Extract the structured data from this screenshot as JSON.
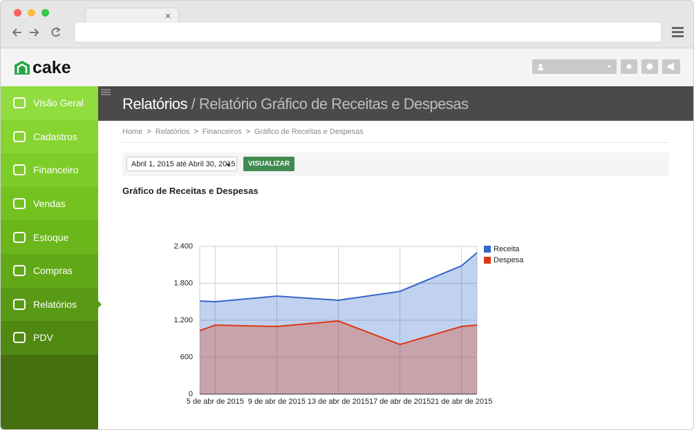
{
  "app": {
    "logo": "cake"
  },
  "sidebar": {
    "items": [
      "Visão Geral",
      "Cadastros",
      "Financeiro",
      "Vendas",
      "Estoque",
      "Compras",
      "Relatórios",
      "PDV"
    ]
  },
  "header": {
    "section": "Relatórios",
    "separator": "/",
    "page": "Relatório Gráfico de Receitas e Despesas"
  },
  "breadcrumb": {
    "items": [
      "Home",
      "Relatórios",
      "Financeiros",
      "Gráfico de Receitas e Despesas"
    ],
    "separator": ">"
  },
  "filter": {
    "date_range": "Abril 1, 2015 até Abril 30, 2015",
    "button": "VISUALIZAR"
  },
  "chart_data": {
    "type": "area",
    "title": "Gráfico de Receitas e Despesas",
    "x": [
      "2015-04-04",
      "2015-04-05",
      "2015-04-09",
      "2015-04-13",
      "2015-04-17",
      "2015-04-21",
      "2015-04-22"
    ],
    "series": [
      {
        "name": "Receita",
        "color": "#3366cc",
        "values": [
          1513,
          1502,
          1592,
          1525,
          1670,
          2085,
          2298
        ]
      },
      {
        "name": "Despesa",
        "color": "#dc3912",
        "values": [
          1031,
          1121,
          1099,
          1188,
          807,
          1099,
          1121
        ]
      }
    ],
    "xlim": [
      "2015-04-04",
      "2015-04-22"
    ],
    "xticks": [
      {
        "value": "2015-04-05",
        "label": "5 de abr de 2015"
      },
      {
        "value": "2015-04-09",
        "label": "9 de abr de 2015"
      },
      {
        "value": "2015-04-13",
        "label": "13 de abr de 2015"
      },
      {
        "value": "2015-04-17",
        "label": "17 de abr de 2015"
      },
      {
        "value": "2015-04-21",
        "label": "21 de abr de 2015"
      }
    ],
    "ylim": [
      0,
      2400
    ],
    "yticks": [
      0,
      600,
      {
        "value": 1200,
        "label": "1.200"
      },
      {
        "value": 1800,
        "label": "1.800"
      },
      {
        "value": 2400,
        "label": "2.400"
      }
    ],
    "grid": true,
    "legend": "right"
  }
}
